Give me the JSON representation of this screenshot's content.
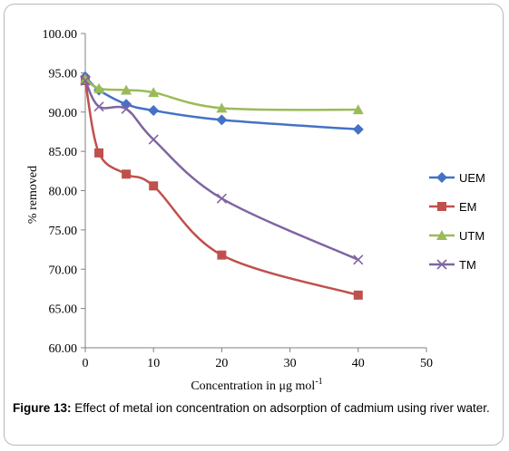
{
  "chart_data": {
    "type": "line",
    "xlabel": "Concentration in μg mol",
    "xlabel_sup": "-1",
    "ylabel": "% removed",
    "xlim": [
      0,
      50
    ],
    "ylim": [
      60,
      100
    ],
    "xticks": [
      "0",
      "10",
      "20",
      "30",
      "40",
      "50"
    ],
    "yticks": [
      "60.00",
      "65.00",
      "70.00",
      "75.00",
      "80.00",
      "85.00",
      "90.00",
      "95.00",
      "100.00"
    ],
    "grid": false,
    "legend_position": "right",
    "series": [
      {
        "name": "UEM",
        "color": "#4472C4",
        "marker": "diamond",
        "points": [
          [
            0,
            94.5
          ],
          [
            2,
            92.8
          ],
          [
            6,
            91.0
          ],
          [
            10,
            90.2
          ],
          [
            20,
            89.0
          ],
          [
            40,
            87.8
          ]
        ]
      },
      {
        "name": "EM",
        "color": "#C0504D",
        "marker": "square",
        "points": [
          [
            0,
            94.0
          ],
          [
            2,
            84.8
          ],
          [
            6,
            82.1
          ],
          [
            10,
            80.6
          ],
          [
            20,
            71.8
          ],
          [
            40,
            66.7
          ]
        ]
      },
      {
        "name": "UTM",
        "color": "#9BBB59",
        "marker": "triangle",
        "points": [
          [
            0,
            94.2
          ],
          [
            2,
            93.0
          ],
          [
            6,
            92.8
          ],
          [
            10,
            92.5
          ],
          [
            20,
            90.5
          ],
          [
            40,
            90.3
          ]
        ]
      },
      {
        "name": "TM",
        "color": "#8064A2",
        "marker": "x",
        "points": [
          [
            0,
            94.0
          ],
          [
            2,
            90.7
          ],
          [
            6,
            90.4
          ],
          [
            10,
            86.5
          ],
          [
            20,
            79.0
          ],
          [
            40,
            71.2
          ]
        ]
      }
    ]
  },
  "caption": {
    "label": "Figure 13:",
    "text": " Effect of metal ion concentration on adsorption of cadmium using river water."
  }
}
